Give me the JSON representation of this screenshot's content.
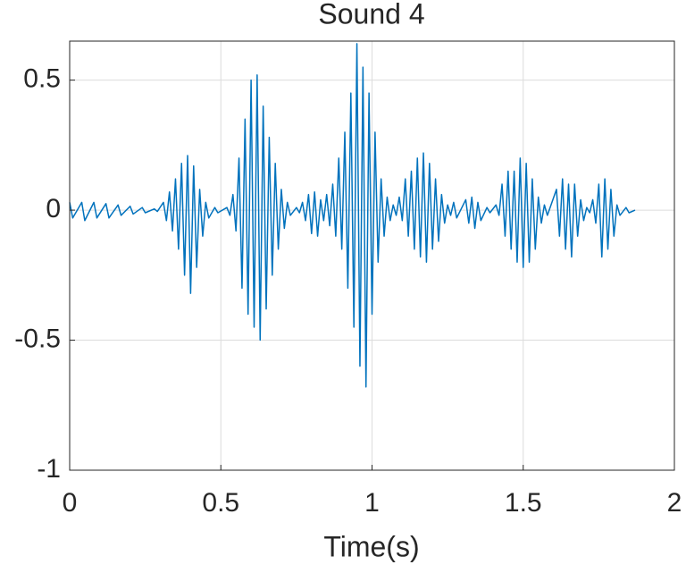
{
  "chart_data": {
    "type": "line",
    "title": "Sound 4",
    "x_label": "Time(s)",
    "x": [
      0,
      0.01,
      0.04,
      0.05,
      0.08,
      0.09,
      0.12,
      0.13,
      0.16,
      0.17,
      0.2,
      0.21,
      0.24,
      0.25,
      0.28,
      0.29,
      0.31,
      0.32,
      0.33,
      0.34,
      0.35,
      0.36,
      0.37,
      0.38,
      0.39,
      0.4,
      0.41,
      0.42,
      0.43,
      0.44,
      0.45,
      0.46,
      0.48,
      0.49,
      0.52,
      0.53,
      0.54,
      0.55,
      0.56,
      0.57,
      0.58,
      0.59,
      0.6,
      0.61,
      0.62,
      0.63,
      0.64,
      0.65,
      0.66,
      0.67,
      0.68,
      0.69,
      0.7,
      0.71,
      0.72,
      0.73,
      0.75,
      0.76,
      0.77,
      0.78,
      0.79,
      0.8,
      0.81,
      0.82,
      0.83,
      0.84,
      0.85,
      0.86,
      0.87,
      0.88,
      0.89,
      0.9,
      0.91,
      0.92,
      0.93,
      0.94,
      0.95,
      0.96,
      0.97,
      0.98,
      0.99,
      1.0,
      1.01,
      1.02,
      1.03,
      1.04,
      1.05,
      1.06,
      1.07,
      1.08,
      1.09,
      1.1,
      1.11,
      1.12,
      1.13,
      1.14,
      1.15,
      1.16,
      1.17,
      1.18,
      1.19,
      1.2,
      1.21,
      1.22,
      1.23,
      1.24,
      1.25,
      1.26,
      1.27,
      1.28,
      1.31,
      1.32,
      1.33,
      1.34,
      1.35,
      1.36,
      1.38,
      1.39,
      1.41,
      1.42,
      1.43,
      1.44,
      1.45,
      1.46,
      1.47,
      1.48,
      1.49,
      1.5,
      1.51,
      1.52,
      1.53,
      1.54,
      1.55,
      1.56,
      1.57,
      1.58,
      1.61,
      1.62,
      1.63,
      1.64,
      1.65,
      1.66,
      1.67,
      1.68,
      1.69,
      1.7,
      1.71,
      1.72,
      1.73,
      1.74,
      1.75,
      1.76,
      1.77,
      1.78,
      1.79,
      1.8,
      1.81,
      1.82,
      1.84,
      1.85,
      1.87
    ],
    "values": [
      0.03,
      -0.03,
      0.03,
      -0.04,
      0.03,
      -0.03,
      0.025,
      -0.03,
      0.02,
      -0.02,
      0.015,
      -0.015,
      0.01,
      -0.01,
      0.005,
      -0.005,
      0.03,
      -0.04,
      0.07,
      -0.08,
      0.12,
      -0.15,
      0.18,
      -0.25,
      0.21,
      -0.32,
      0.17,
      -0.22,
      0.08,
      -0.1,
      0.03,
      -0.03,
      0.01,
      -0.01,
      0.01,
      -0.02,
      0.06,
      -0.08,
      0.2,
      -0.3,
      0.35,
      -0.4,
      0.5,
      -0.45,
      0.52,
      -0.5,
      0.4,
      -0.38,
      0.28,
      -0.25,
      0.18,
      -0.15,
      0.08,
      -0.07,
      0.03,
      -0.02,
      0.01,
      -0.01,
      0.03,
      -0.04,
      0.06,
      -0.09,
      0.07,
      -0.1,
      0.04,
      -0.04,
      0.06,
      -0.06,
      0.1,
      -0.1,
      0.2,
      -0.15,
      0.3,
      -0.3,
      0.45,
      -0.45,
      0.64,
      -0.6,
      0.55,
      -0.68,
      0.45,
      -0.4,
      0.3,
      -0.2,
      0.12,
      -0.1,
      0.05,
      -0.04,
      0.02,
      -0.02,
      0.05,
      -0.04,
      0.12,
      -0.1,
      0.15,
      -0.15,
      0.2,
      -0.18,
      0.22,
      -0.2,
      0.18,
      -0.15,
      0.12,
      -0.12,
      0.06,
      -0.05,
      0.02,
      -0.02,
      0.03,
      -0.03,
      0.04,
      -0.05,
      0.05,
      -0.07,
      0.03,
      -0.04,
      0.01,
      -0.01,
      0.02,
      -0.02,
      0.1,
      -0.1,
      0.15,
      -0.15,
      0.15,
      -0.2,
      0.2,
      -0.22,
      0.18,
      -0.2,
      0.12,
      -0.15,
      0.05,
      -0.05,
      0.02,
      -0.02,
      0.08,
      -0.1,
      0.12,
      -0.15,
      0.1,
      -0.18,
      0.1,
      -0.1,
      0.04,
      -0.04,
      0.01,
      -0.01,
      0.04,
      -0.05,
      0.1,
      -0.18,
      0.12,
      -0.15,
      0.08,
      -0.1,
      0.02,
      -0.02,
      0.01,
      -0.01,
      0
    ],
    "color": "#0072bd",
    "xlim": [
      0,
      2
    ],
    "xticks": [
      0,
      0.5,
      1,
      1.5,
      2
    ],
    "ylim": [
      -1,
      0.65
    ],
    "yticks": [
      -1,
      -0.5,
      0,
      0.5
    ],
    "grid": true
  }
}
